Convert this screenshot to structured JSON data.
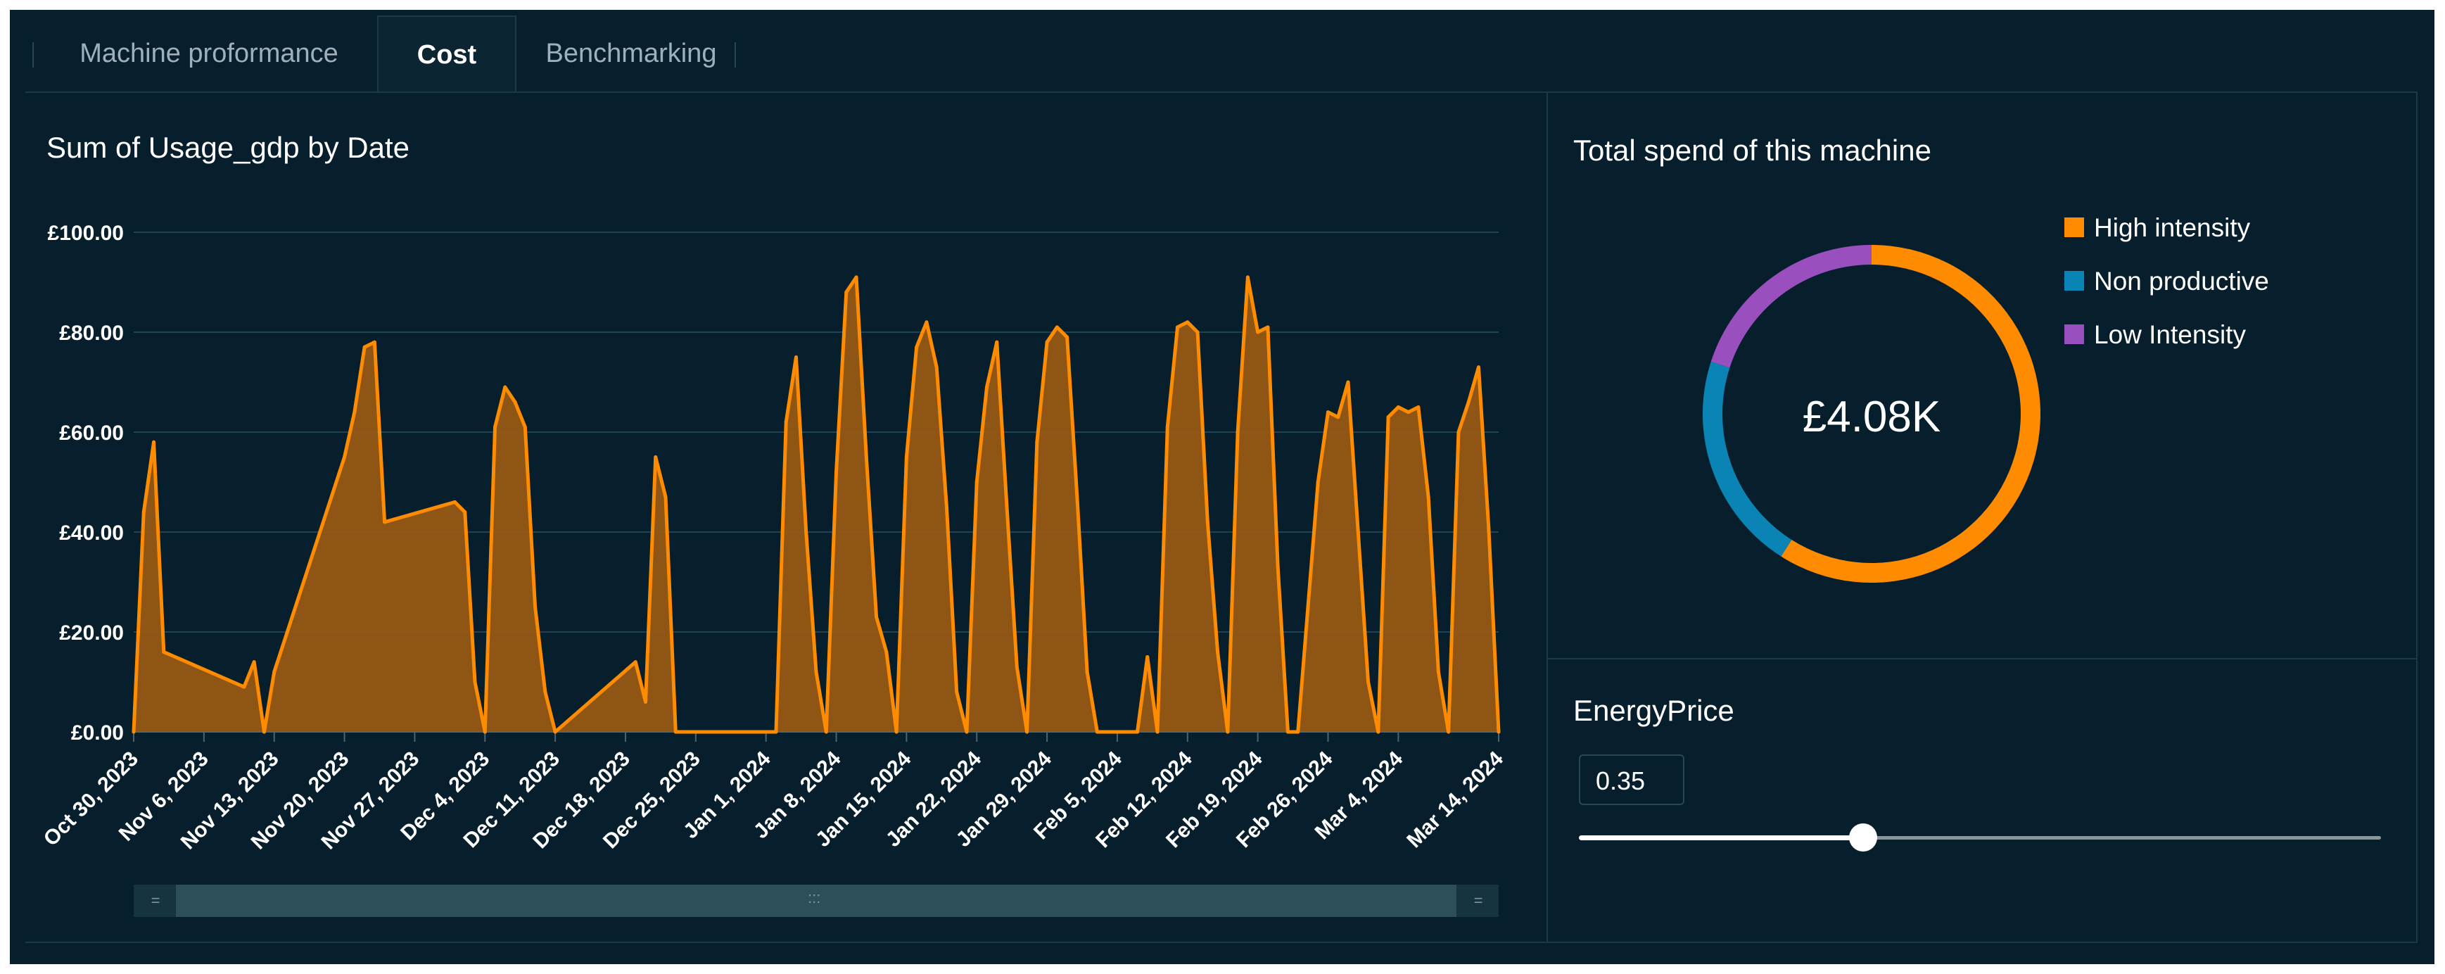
{
  "tabs": [
    {
      "label": "Machine proformance",
      "active": false
    },
    {
      "label": "Cost",
      "active": true
    },
    {
      "label": "Benchmarking",
      "active": false
    }
  ],
  "line_chart": {
    "title": "Sum of Usage_gdp by Date"
  },
  "donut": {
    "title": "Total spend of this machine",
    "center_label": "£4.08K"
  },
  "energy_price": {
    "title": "EnergyPrice",
    "value": "0.35",
    "slider_position": 0.35
  },
  "colors": {
    "background": "#071f2c",
    "accent_orange": "#ff8c00",
    "area_fill": "#9a5a14",
    "non_productive": "#0a84b4",
    "low_intensity": "#9a4fbf"
  },
  "chart_data": [
    {
      "type": "area",
      "title": "Sum of Usage_gdp by Date",
      "xlabel": "",
      "ylabel": "",
      "x_tick_labels": [
        "Oct 30, 2023",
        "Nov 6, 2023",
        "Nov 13, 2023",
        "Nov 20, 2023",
        "Nov 27, 2023",
        "Dec 4, 2023",
        "Dec 11, 2023",
        "Dec 18, 2023",
        "Dec 25, 2023",
        "Jan 1, 2024",
        "Jan 8, 2024",
        "Jan 15, 2024",
        "Jan 22, 2024",
        "Jan 29, 2024",
        "Feb 5, 2024",
        "Feb 12, 2024",
        "Feb 19, 2024",
        "Feb 26, 2024",
        "Mar 4, 2024",
        "Mar 14, 2024"
      ],
      "y_tick_labels": [
        "£0.00",
        "£20.00",
        "£40.00",
        "£60.00",
        "£80.00",
        "£100.00"
      ],
      "ylim": [
        0,
        100
      ],
      "grid": true,
      "series": [
        {
          "x": [
            "2023-10-30",
            "2023-10-31",
            "2023-11-01",
            "2023-11-02",
            "2023-11-10",
            "2023-11-11",
            "2023-11-12",
            "2023-11-13",
            "2023-11-20",
            "2023-11-21",
            "2023-11-22",
            "2023-11-23",
            "2023-11-24",
            "2023-12-01",
            "2023-12-02",
            "2023-12-03",
            "2023-12-04",
            "2023-12-05",
            "2023-12-06",
            "2023-12-07",
            "2023-12-08",
            "2023-12-09",
            "2023-12-10",
            "2023-12-11",
            "2023-12-19",
            "2023-12-20",
            "2023-12-21",
            "2023-12-22",
            "2023-12-23",
            "2024-01-02",
            "2024-01-03",
            "2024-01-04",
            "2024-01-05",
            "2024-01-06",
            "2024-01-07",
            "2024-01-08",
            "2024-01-09",
            "2024-01-10",
            "2024-01-11",
            "2024-01-12",
            "2024-01-13",
            "2024-01-14",
            "2024-01-15",
            "2024-01-16",
            "2024-01-17",
            "2024-01-18",
            "2024-01-19",
            "2024-01-20",
            "2024-01-21",
            "2024-01-22",
            "2024-01-23",
            "2024-01-24",
            "2024-01-25",
            "2024-01-26",
            "2024-01-27",
            "2024-01-28",
            "2024-01-29",
            "2024-01-30",
            "2024-01-31",
            "2024-02-01",
            "2024-02-02",
            "2024-02-03",
            "2024-02-07",
            "2024-02-08",
            "2024-02-09",
            "2024-02-10",
            "2024-02-11",
            "2024-02-12",
            "2024-02-13",
            "2024-02-14",
            "2024-02-15",
            "2024-02-16",
            "2024-02-17",
            "2024-02-18",
            "2024-02-19",
            "2024-02-20",
            "2024-02-21",
            "2024-02-22",
            "2024-02-23",
            "2024-02-25",
            "2024-02-26",
            "2024-02-27",
            "2024-02-28",
            "2024-02-29",
            "2024-03-01",
            "2024-03-02",
            "2024-03-03",
            "2024-03-04",
            "2024-03-05",
            "2024-03-06",
            "2024-03-07",
            "2024-03-08",
            "2024-03-09",
            "2024-03-10",
            "2024-03-11",
            "2024-03-12",
            "2024-03-13",
            "2024-03-14"
          ],
          "y": [
            0,
            44,
            58,
            16,
            9,
            14,
            0,
            12,
            55,
            64,
            77,
            78,
            42,
            46,
            44,
            10,
            0,
            61,
            69,
            66,
            61,
            25,
            8,
            0,
            14,
            6,
            55,
            47,
            0,
            0,
            62,
            75,
            40,
            12,
            0,
            52,
            88,
            91,
            55,
            23,
            16,
            0,
            55,
            77,
            82,
            73,
            45,
            8,
            0,
            50,
            69,
            78,
            45,
            13,
            0,
            58,
            78,
            81,
            79,
            47,
            12,
            0,
            0,
            15,
            0,
            61,
            81,
            82,
            80,
            42,
            16,
            0,
            60,
            91,
            80,
            81,
            33,
            0,
            0,
            50,
            64,
            63,
            70,
            40,
            10,
            0,
            63,
            65,
            64,
            65,
            47,
            12,
            0,
            60,
            66,
            73,
            41,
            0
          ]
        }
      ]
    },
    {
      "type": "pie",
      "title": "Total spend of this machine",
      "center_label": "£4.08K",
      "labels": [
        "High intensity",
        "Non productive",
        "Low Intensity"
      ],
      "values": [
        59,
        21,
        20
      ],
      "colors": [
        "#ff8c00",
        "#0a84b4",
        "#9a4fbf"
      ],
      "legend": "right"
    }
  ]
}
